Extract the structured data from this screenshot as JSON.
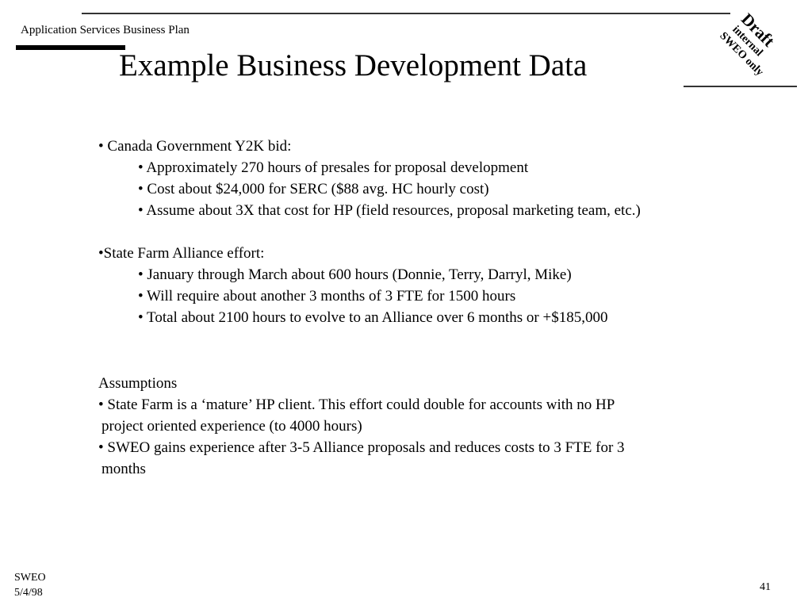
{
  "header": {
    "title": "Application Services Business Plan"
  },
  "page_title": "Example Business Development Data",
  "stamp": {
    "line1": "Draft",
    "line2": "internal",
    "line3": "SWEO only"
  },
  "body": {
    "lines": [
      "• Canada Government Y2K bid:",
      "• Approximately 270 hours of presales for proposal development",
      "• Cost about $24,000 for SERC  ($88 avg. HC hourly cost)",
      "• Assume about 3X that cost for HP (field resources, proposal marketing team, etc.)",
      "•State Farm Alliance effort:",
      "•  January through March about 600 hours (Donnie, Terry, Darryl, Mike)",
      "•  Will require about another 3 months of 3 FTE for 1500 hours",
      "• Total about 2100 hours to evolve to an Alliance over 6 months or +$185,000",
      "Assumptions",
      "• State Farm is a ‘mature’ HP client. This effort could double for accounts with no HP",
      " project oriented experience (to 4000 hours)",
      "• SWEO gains experience after 3-5 Alliance proposals and reduces costs to 3 FTE for 3",
      " months"
    ]
  },
  "footer": {
    "org": "SWEO",
    "date": "5/4/98",
    "page_number": "41"
  }
}
